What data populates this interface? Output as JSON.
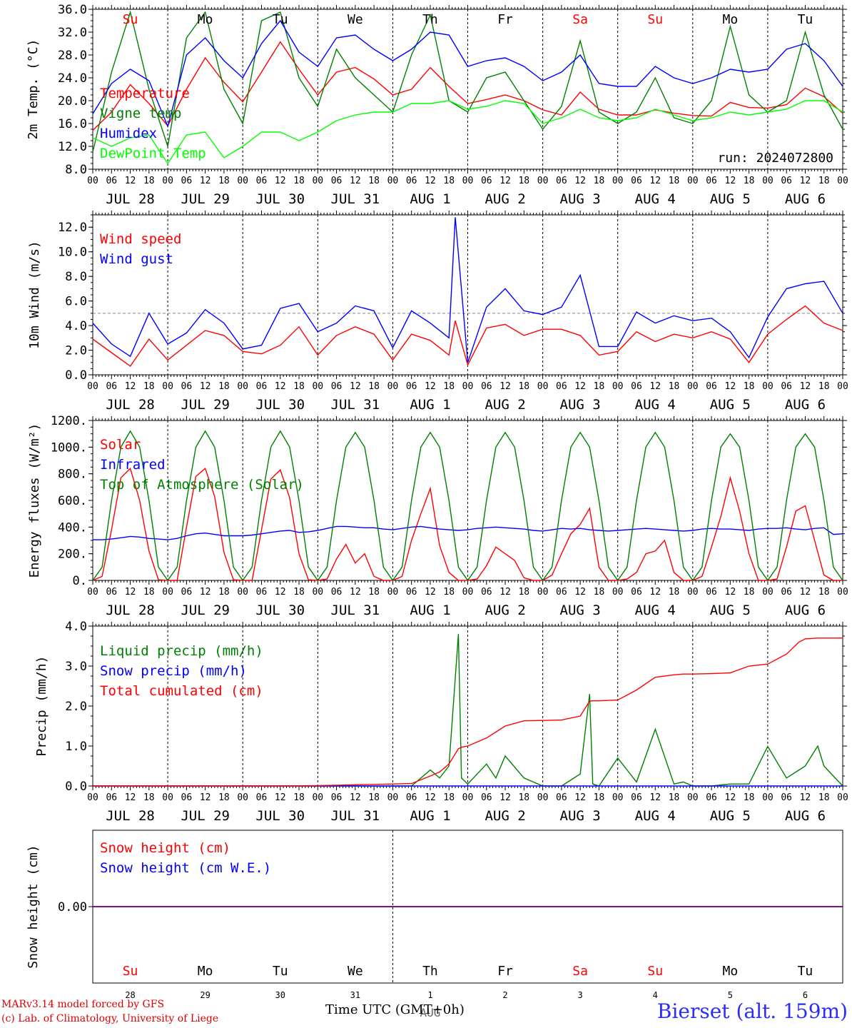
{
  "colors": {
    "red": "#ff0000",
    "green": "#008000",
    "blue": "#0000ff",
    "lime": "#00ff00",
    "purple": "#800080",
    "grey": "#888888"
  },
  "footer": {
    "credit1": "MARv3.14 model forced by GFS",
    "credit2": "(c) Lab. of Climatology, University of Liege",
    "xtitle": "Time UTC (GMT+0h)",
    "station": "Bierset (alt. 159m)",
    "aug": "AUG"
  },
  "hour_ticks": [
    "00",
    "06",
    "12",
    "18"
  ],
  "final_tick": "00",
  "dates": [
    "JUL 28",
    "JUL 29",
    "JUL 30",
    "JUL 31",
    "AUG  1",
    "AUG  2",
    "AUG  3",
    "AUG  4",
    "AUG  5",
    "AUG  6"
  ],
  "weekdays": [
    "Su",
    "Mo",
    "Tu",
    "We",
    "Th",
    "Fr",
    "Sa",
    "Su",
    "Mo",
    "Tu"
  ],
  "weekend": [
    true,
    false,
    false,
    false,
    false,
    false,
    true,
    true,
    false,
    false
  ],
  "day_numbers": [
    "28",
    "29",
    "30",
    "31",
    "1",
    "2",
    "3",
    "4",
    "5",
    "6"
  ],
  "chart_data": [
    {
      "type": "line",
      "ylabel": "2m Temp. (°C)",
      "ylim": [
        8,
        36
      ],
      "yticks": [
        "8.0",
        "12.0",
        "16.0",
        "20.0",
        "24.0",
        "28.0",
        "32.0",
        "36.0"
      ],
      "annotation": "run: 2024072800",
      "x": [
        0,
        6,
        12,
        18,
        24,
        30,
        36,
        42,
        48,
        54,
        60,
        66,
        72,
        78,
        84,
        90,
        96,
        102,
        108,
        114,
        120,
        126,
        132,
        138,
        144,
        150,
        156,
        162,
        168,
        174,
        180,
        186,
        192,
        198,
        204,
        210,
        216,
        222,
        228,
        234,
        240
      ],
      "series": [
        {
          "name": "Temperature",
          "color": "red",
          "values": [
            14.8,
            18,
            22.8,
            19.5,
            15.6,
            22,
            27.5,
            23.2,
            19.8,
            25,
            30.3,
            25.5,
            21,
            25,
            25.8,
            23.8,
            21,
            22,
            25.8,
            22.5,
            19.5,
            20.2,
            21,
            20,
            18.4,
            17.5,
            21.5,
            18.5,
            17.5,
            17.5,
            18.4,
            17.8,
            17.4,
            17.3,
            19.7,
            18.8,
            18.7,
            19.3,
            22.2,
            20.7,
            17.8
          ]
        },
        {
          "name": "Vigne temp",
          "color": "green",
          "values": [
            11,
            25,
            35.5,
            22,
            12,
            31,
            35.5,
            22,
            16,
            34,
            35.5,
            24,
            19,
            29,
            24,
            21,
            18,
            28,
            35,
            20,
            18,
            24,
            25,
            20,
            15,
            19,
            30.5,
            18,
            16,
            18,
            24,
            17,
            16,
            20,
            33,
            21,
            18,
            20,
            32,
            21,
            15
          ]
        },
        {
          "name": "Humidex",
          "color": "blue",
          "values": [
            17.7,
            23,
            25.5,
            23.5,
            15.5,
            28,
            31,
            27,
            24,
            30,
            34,
            28.5,
            26,
            31,
            31.5,
            29,
            27,
            29,
            32,
            31.5,
            26,
            27,
            27.5,
            26,
            23.5,
            25,
            28,
            23,
            22.5,
            22.5,
            26,
            24,
            23,
            24,
            25.5,
            25,
            25.5,
            29,
            30,
            27,
            22.5
          ]
        },
        {
          "name": "DewPoint Temp",
          "color": "lime",
          "values": [
            13.5,
            12,
            13.5,
            14,
            9,
            14,
            14.5,
            10,
            12,
            14.5,
            14.5,
            13,
            14.5,
            16.5,
            17.5,
            18,
            18,
            19.5,
            19.5,
            20,
            18.5,
            19,
            20,
            19.5,
            16,
            17,
            18.5,
            17,
            16.5,
            17,
            18.5,
            17.5,
            16.5,
            17,
            18,
            17.5,
            18,
            18.5,
            20,
            20,
            18
          ]
        }
      ]
    },
    {
      "type": "line",
      "ylabel": "10m Wind (m/s)",
      "ylim": [
        0,
        13
      ],
      "yticks": [
        "0.0",
        "2.0",
        "4.0",
        "6.0",
        "8.0",
        "10.0",
        "12.0"
      ],
      "ref_line": 5,
      "x": [
        0,
        6,
        12,
        18,
        24,
        30,
        36,
        42,
        48,
        54,
        60,
        66,
        72,
        78,
        84,
        90,
        96,
        102,
        108,
        114,
        116,
        120,
        126,
        132,
        138,
        144,
        150,
        156,
        162,
        168,
        174,
        180,
        186,
        192,
        198,
        204,
        210,
        216,
        222,
        228,
        234,
        240
      ],
      "series": [
        {
          "name": "Wind speed",
          "color": "red",
          "values": [
            2.9,
            1.8,
            0.7,
            2.9,
            1.2,
            2.4,
            3.6,
            3.2,
            1.9,
            1.7,
            2.4,
            3.9,
            1.6,
            3.2,
            3.9,
            3.3,
            1.2,
            3.3,
            2.8,
            1.6,
            4.4,
            0.8,
            3.8,
            4.1,
            3.2,
            3.7,
            3.7,
            3.2,
            1.6,
            1.9,
            3.5,
            2.7,
            3.3,
            3.0,
            3.5,
            2.9,
            1.0,
            3.3,
            4.5,
            5.6,
            4.2,
            3.6
          ]
        },
        {
          "name": "Wind gust",
          "color": "blue",
          "values": [
            4.2,
            2.5,
            1.5,
            5.0,
            2.5,
            3.4,
            5.3,
            4.2,
            2.1,
            2.4,
            5.4,
            5.8,
            3.5,
            4.2,
            5.6,
            5.2,
            2.2,
            5.2,
            4.2,
            3.0,
            12.8,
            1.0,
            5.5,
            7.0,
            5.2,
            4.9,
            5.5,
            8.1,
            2.3,
            2.3,
            5.1,
            4.2,
            4.8,
            4.4,
            4.6,
            3.5,
            1.4,
            4.7,
            7.0,
            7.4,
            7.6,
            5.0
          ]
        }
      ]
    },
    {
      "type": "line",
      "ylabel": "Energy fluxes (W/m²)",
      "ylim": [
        0,
        1200
      ],
      "yticks": [
        "0.",
        "200.",
        "400.",
        "600.",
        "800.",
        "1000.",
        "1200."
      ],
      "x": [
        0,
        3,
        6,
        9,
        12,
        15,
        18,
        21,
        24,
        27,
        30,
        33,
        36,
        39,
        42,
        45,
        48,
        51,
        54,
        57,
        60,
        63,
        66,
        69,
        72,
        75,
        78,
        81,
        84,
        87,
        90,
        93,
        96,
        99,
        102,
        105,
        108,
        111,
        114,
        117,
        120,
        123,
        126,
        129,
        132,
        135,
        138,
        141,
        144,
        147,
        150,
        153,
        156,
        159,
        162,
        165,
        168,
        171,
        174,
        177,
        180,
        183,
        186,
        189,
        192,
        195,
        198,
        201,
        204,
        207,
        210,
        213,
        216,
        219,
        222,
        225,
        228,
        231,
        234,
        237,
        240
      ],
      "series": [
        {
          "name": "Solar",
          "color": "red",
          "values": [
            0,
            30,
            380,
            770,
            840,
            600,
            220,
            5,
            0,
            0,
            400,
            780,
            840,
            630,
            210,
            5,
            0,
            0,
            380,
            760,
            830,
            620,
            200,
            5,
            0,
            10,
            160,
            270,
            130,
            200,
            30,
            0,
            0,
            30,
            300,
            500,
            690,
            260,
            60,
            0,
            0,
            10,
            110,
            250,
            200,
            150,
            20,
            0,
            0,
            40,
            200,
            350,
            420,
            540,
            100,
            0,
            0,
            10,
            60,
            200,
            220,
            300,
            60,
            0,
            0,
            30,
            250,
            480,
            770,
            520,
            200,
            0,
            0,
            10,
            250,
            520,
            560,
            300,
            40,
            0,
            0
          ]
        },
        {
          "name": "Infrared",
          "color": "blue",
          "values": [
            305,
            305,
            310,
            320,
            330,
            325,
            315,
            310,
            305,
            315,
            335,
            350,
            355,
            345,
            335,
            335,
            335,
            340,
            350,
            360,
            370,
            375,
            360,
            365,
            375,
            390,
            405,
            405,
            400,
            395,
            395,
            385,
            380,
            390,
            400,
            405,
            395,
            385,
            380,
            375,
            380,
            390,
            395,
            400,
            395,
            390,
            385,
            375,
            370,
            380,
            390,
            385,
            390,
            380,
            375,
            370,
            375,
            380,
            385,
            390,
            385,
            380,
            375,
            370,
            375,
            385,
            390,
            385,
            385,
            380,
            375,
            385,
            390,
            390,
            395,
            385,
            380,
            390,
            395,
            345,
            350
          ]
        },
        {
          "name": "Top of Atmosphere (Solar)",
          "color": "green",
          "values": [
            0,
            100,
            600,
            1000,
            1120,
            1000,
            600,
            100,
            0,
            100,
            600,
            1000,
            1120,
            1000,
            600,
            100,
            0,
            100,
            600,
            1000,
            1120,
            1000,
            600,
            100,
            0,
            100,
            600,
            1000,
            1110,
            1000,
            600,
            100,
            0,
            100,
            600,
            1000,
            1110,
            1000,
            600,
            100,
            0,
            100,
            600,
            1000,
            1110,
            1000,
            600,
            100,
            0,
            100,
            600,
            1000,
            1110,
            1000,
            600,
            100,
            0,
            100,
            600,
            1000,
            1110,
            1000,
            600,
            100,
            0,
            100,
            600,
            1000,
            1100,
            1000,
            600,
            100,
            0,
            100,
            600,
            1000,
            1100,
            1000,
            600,
            100,
            0
          ]
        }
      ]
    },
    {
      "type": "line",
      "ylabel": "Precip (mm/h)",
      "ylim": [
        0,
        4
      ],
      "yticks": [
        "0.0",
        "1.0",
        "2.0",
        "3.0",
        "4.0"
      ],
      "x": [
        0,
        12,
        24,
        36,
        48,
        60,
        72,
        78,
        84,
        90,
        96,
        102,
        108,
        111,
        114,
        117,
        118,
        120,
        126,
        129,
        132,
        138,
        144,
        150,
        156,
        159,
        160,
        162,
        168,
        174,
        180,
        186,
        189,
        192,
        198,
        204,
        210,
        216,
        222,
        226,
        228,
        232,
        234,
        240
      ],
      "series": [
        {
          "name": "Liquid precip (mm/h)",
          "color": "green",
          "values": [
            0,
            0,
            0,
            0,
            0,
            0,
            0,
            0,
            0,
            0,
            0,
            0,
            0.4,
            0.2,
            0.5,
            3.8,
            0.2,
            0.05,
            0.55,
            0.2,
            0.75,
            0.2,
            0,
            0,
            0.3,
            2.3,
            0.05,
            0,
            0.7,
            0.1,
            1.42,
            0.05,
            0.1,
            0,
            0,
            0.05,
            0.05,
            0.99,
            0.2,
            0.4,
            0.5,
            1.0,
            0.5,
            0
          ]
        },
        {
          "name": "Snow precip (mm/h)",
          "color": "blue",
          "values": [
            0,
            0,
            0,
            0,
            0,
            0,
            0,
            0,
            0,
            0,
            0,
            0,
            0,
            0,
            0,
            0,
            0,
            0,
            0,
            0,
            0,
            0,
            0,
            0,
            0,
            0,
            0,
            0,
            0,
            0,
            0,
            0,
            0,
            0,
            0,
            0,
            0,
            0,
            0,
            0,
            0,
            0,
            0,
            0
          ]
        },
        {
          "name": "Total cumulated (cm)",
          "color": "red",
          "values": [
            0,
            0,
            0,
            0,
            0,
            0,
            0.01,
            0.02,
            0.03,
            0.04,
            0.05,
            0.06,
            0.25,
            0.35,
            0.55,
            0.93,
            0.97,
            1.0,
            1.2,
            1.35,
            1.5,
            1.63,
            1.64,
            1.65,
            1.75,
            2.12,
            2.13,
            2.13,
            2.15,
            2.4,
            2.72,
            2.78,
            2.8,
            2.8,
            2.81,
            2.83,
            3.0,
            3.05,
            3.3,
            3.6,
            3.68,
            3.7,
            3.7,
            3.7
          ]
        }
      ]
    },
    {
      "type": "line",
      "ylabel": "Snow height (cm)",
      "yticks": [
        "0.00"
      ],
      "x": [
        0,
        240
      ],
      "series": [
        {
          "name": "Snow height (cm)",
          "color": "red",
          "values": [
            0,
            0
          ]
        },
        {
          "name": "Snow height (cm W.E.)",
          "color": "blue",
          "values": [
            0,
            0
          ]
        }
      ]
    }
  ]
}
